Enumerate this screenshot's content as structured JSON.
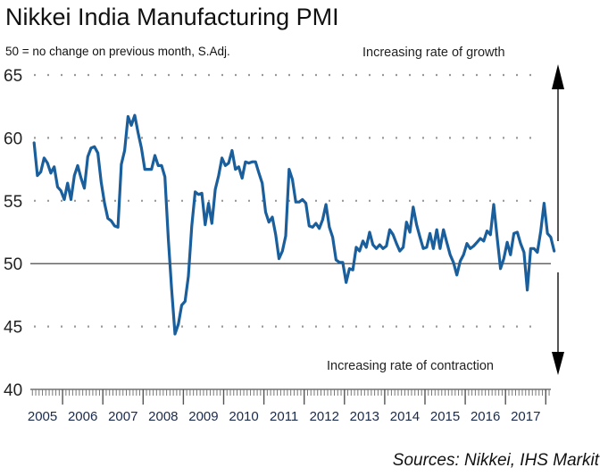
{
  "chart_data": {
    "type": "line",
    "title": "Nikkei India Manufacturing PMI",
    "subtitle": "50 = no change on previous month, S.Adj.",
    "annotation_top": "Increasing rate of growth",
    "annotation_bottom": "Increasing rate of contraction",
    "source": "Sources: Nikkei, IHS Markit",
    "xlabel": "",
    "ylabel": "",
    "ylim": [
      40,
      65
    ],
    "yticks": [
      40,
      45,
      50,
      55,
      60,
      65
    ],
    "ytick_labels": [
      "40",
      "45",
      "50",
      "55",
      "60",
      "65"
    ],
    "xtick_labels": [
      "2005",
      "2006",
      "2007",
      "2008",
      "2009",
      "2010",
      "2011",
      "2012",
      "2013",
      "2014",
      "2015",
      "2016",
      "2017"
    ],
    "reference_line": 50,
    "grid": "dotted horizontal",
    "line_color": "#1a5f9c",
    "start": "2005-04",
    "frequency": "monthly",
    "series": [
      {
        "name": "PMI",
        "values": [
          59.6,
          57.0,
          57.3,
          58.4,
          58.0,
          57.2,
          57.7,
          56.1,
          55.8,
          55.1,
          56.4,
          55.1,
          57.0,
          57.8,
          56.8,
          56.0,
          58.5,
          59.2,
          59.3,
          58.8,
          56.5,
          54.8,
          53.6,
          53.4,
          53.0,
          52.9,
          57.9,
          59.0,
          61.7,
          61.0,
          61.8,
          60.4,
          59.2,
          57.5,
          57.5,
          57.5,
          58.6,
          57.8,
          57.8,
          56.9,
          52.0,
          48.0,
          44.4,
          45.2,
          46.7,
          47.0,
          49.0,
          53.0,
          55.7,
          55.5,
          55.6,
          53.1,
          54.8,
          53.2,
          55.9,
          57.0,
          58.4,
          57.8,
          58.0,
          59.0,
          57.5,
          57.7,
          56.8,
          58.1,
          58.0,
          58.1,
          58.1,
          57.2,
          56.4,
          54.1,
          53.3,
          53.7,
          52.3,
          50.4,
          51.0,
          52.2,
          57.5,
          56.7,
          54.9,
          54.9,
          55.1,
          54.8,
          53.0,
          52.9,
          53.2,
          52.8,
          53.5,
          54.7,
          52.9,
          52.1,
          50.3,
          50.1,
          50.1,
          48.5,
          49.6,
          49.5,
          51.3,
          51.0,
          51.8,
          51.3,
          52.5,
          51.5,
          51.2,
          51.5,
          51.2,
          51.4,
          52.7,
          52.3,
          51.6,
          51.0,
          51.3,
          53.3,
          52.5,
          54.5,
          53.1,
          52.1,
          51.2,
          51.3,
          52.4,
          51.2,
          52.7,
          51.2,
          52.7,
          51.7,
          50.7,
          50.1,
          49.1,
          50.2,
          50.7,
          51.6,
          51.2,
          51.4,
          51.7,
          52.0,
          51.8,
          52.6,
          52.3,
          54.7,
          52.1,
          49.6,
          50.4,
          51.7,
          50.7,
          52.4,
          52.5,
          51.6,
          50.9,
          47.9,
          51.2,
          51.2,
          50.9,
          52.6,
          54.8,
          52.4,
          52.1,
          51.0
        ]
      }
    ]
  }
}
